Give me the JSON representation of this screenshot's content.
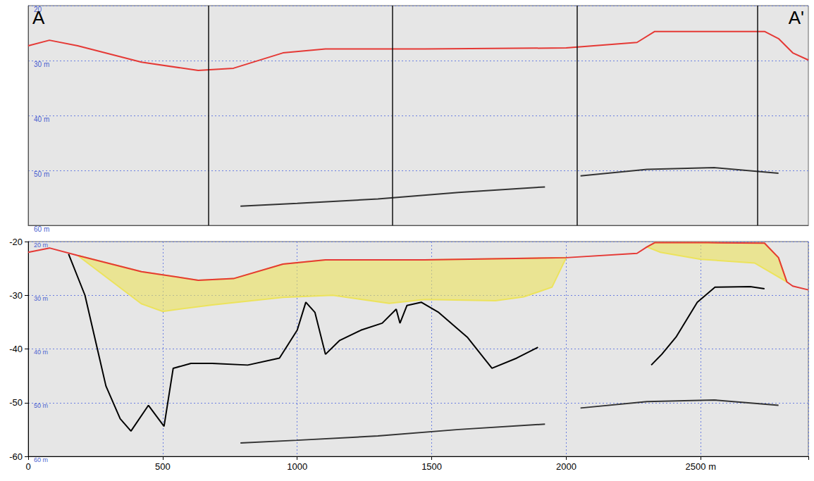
{
  "chart_data": [
    {
      "type": "line",
      "annotations": [
        "A",
        "A'"
      ],
      "xlim": [
        0,
        2900
      ],
      "ylim": [
        20,
        60
      ],
      "yticks": [
        20,
        {
          "value": 30,
          "label": "30 m"
        },
        {
          "value": 40,
          "label": "40 m"
        },
        {
          "value": 50,
          "label": "50 m"
        },
        {
          "value": 60,
          "label": "60 m"
        }
      ],
      "tick_labels": "y",
      "grid": true,
      "fix_marks": [
        671,
        1355,
        2039,
        2711
      ],
      "series": [
        {
          "type": "line",
          "color": "#e53935",
          "x": [
            0,
            79,
            184,
            421,
            632,
            763,
            947,
            1105,
            1474,
            2000,
            2263,
            2329,
            2526,
            2737,
            2789,
            2842,
            2900
          ],
          "values": [
            27.3,
            26.3,
            27.3,
            30.3,
            31.8,
            31.4,
            28.6,
            27.9,
            27.9,
            27.7,
            26.7,
            24.7,
            24.7,
            24.7,
            26.0,
            28.6,
            29.9
          ]
        },
        {
          "type": "line",
          "color": "#333333",
          "x": [
            789,
            1000,
            1300,
            1600,
            1921
          ],
          "values": [
            56.5,
            56.0,
            55.2,
            54.0,
            53.0
          ]
        },
        {
          "type": "line",
          "color": "#333333",
          "x": [
            2053,
            2300,
            2550,
            2789
          ],
          "values": [
            51.0,
            49.8,
            49.5,
            50.5
          ]
        }
      ]
    },
    {
      "type": "line",
      "xlim": [
        0,
        2900
      ],
      "xticks": [
        0,
        500,
        1000,
        1500,
        2000,
        {
          "value": 2500,
          "label": "2500 m"
        }
      ],
      "ylim": [
        -60,
        -20
      ],
      "yticks": [
        -60,
        -50,
        -40,
        -30,
        -20
      ],
      "y2lim": [
        20,
        60
      ],
      "y2ticks": [
        {
          "value": 20,
          "label": "20 m"
        },
        {
          "value": 30,
          "label": "30 m"
        },
        {
          "value": 40,
          "label": "40 m"
        },
        {
          "value": 50,
          "label": "50 m"
        },
        {
          "value": 60,
          "label": "60 m"
        }
      ],
      "grid": true,
      "series": [
        {
          "type": "area",
          "color": "#ece35c",
          "x": [
            184,
            421,
            632,
            763,
            947,
            1105,
            1474,
            2000,
            1947,
            1842,
            1737,
            1474,
            1342,
            1132,
            947,
            684,
            500,
            421
          ],
          "values": [
            -22.6,
            -25.6,
            -27.2,
            -26.9,
            -24.2,
            -23.4,
            -23.4,
            -23.0,
            -28.5,
            -30.3,
            -31.0,
            -30.8,
            -31.5,
            -30.0,
            -30.4,
            -31.8,
            -33.0,
            -31.6
          ]
        },
        {
          "type": "area",
          "color": "#ece35c",
          "x": [
            2300,
            2329,
            2526,
            2737,
            2789,
            2820,
            2700,
            2500,
            2350
          ],
          "values": [
            -21.0,
            -20.2,
            -20.2,
            -20.3,
            -23.0,
            -27.5,
            -24.0,
            -23.3,
            -22.0
          ]
        },
        {
          "type": "line",
          "color": "#e53935",
          "x": [
            0,
            79,
            184,
            421,
            632,
            763,
            947,
            1105,
            1474,
            2000,
            2263,
            2300,
            2329,
            2526,
            2737,
            2789,
            2820,
            2842,
            2900
          ],
          "values": [
            -22.0,
            -21.2,
            -22.6,
            -25.6,
            -27.2,
            -26.9,
            -24.2,
            -23.4,
            -23.4,
            -23.0,
            -22.2,
            -21.0,
            -20.2,
            -20.2,
            -20.3,
            -23.0,
            -27.5,
            -28.3,
            -29.0
          ]
        },
        {
          "type": "line",
          "color": "#000000",
          "x": [
            150,
            211,
            289,
            342,
            382,
            447,
            505,
            539,
            605,
            684,
            816,
            934,
            1000,
            1032,
            1066,
            1105,
            1158,
            1237,
            1316,
            1368,
            1382,
            1408,
            1461,
            1526,
            1632,
            1724,
            1816,
            1895
          ],
          "values": [
            -22.3,
            -30.0,
            -46.9,
            -53.0,
            -55.3,
            -50.5,
            -54.4,
            -43.6,
            -42.7,
            -42.7,
            -43.0,
            -41.7,
            -36.5,
            -31.3,
            -33.2,
            -41.0,
            -38.4,
            -36.5,
            -35.2,
            -32.6,
            -35.2,
            -31.9,
            -31.3,
            -33.2,
            -37.8,
            -43.6,
            -41.7,
            -39.7
          ]
        },
        {
          "type": "line",
          "color": "#000000",
          "x": [
            2316,
            2355,
            2408,
            2487,
            2553,
            2684,
            2737
          ],
          "values": [
            -43.0,
            -41.0,
            -37.8,
            -31.3,
            -28.5,
            -28.4,
            -28.8
          ]
        },
        {
          "type": "line",
          "color": "#333333",
          "x": [
            789,
            1000,
            1300,
            1600,
            1921
          ],
          "values": [
            -57.5,
            -57.0,
            -56.2,
            -55.0,
            -54.0
          ]
        },
        {
          "type": "line",
          "color": "#333333",
          "x": [
            2053,
            2300,
            2550,
            2789
          ],
          "values": [
            -51.0,
            -49.8,
            -49.5,
            -50.5
          ]
        }
      ]
    }
  ]
}
